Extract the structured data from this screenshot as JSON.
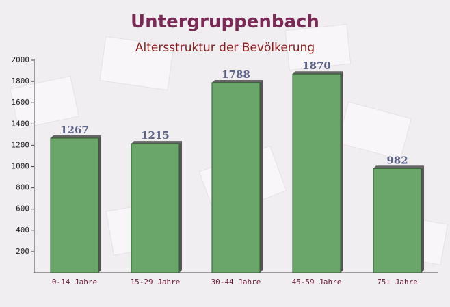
{
  "chart_data": {
    "type": "bar",
    "title": "Untergruppenbach",
    "subtitle": "Altersstruktur der Bevölkerung",
    "categories": [
      "0-14 Jahre",
      "15-29 Jahre",
      "30-44 Jahre",
      "45-59 Jahre",
      "75+ Jahre"
    ],
    "values": [
      1267,
      1215,
      1788,
      1870,
      982
    ],
    "color": "#6aa66a",
    "ylim": [
      0,
      2000
    ],
    "yticks": [
      200,
      400,
      600,
      800,
      1000,
      1200,
      1400,
      1600,
      1800,
      2000
    ]
  }
}
